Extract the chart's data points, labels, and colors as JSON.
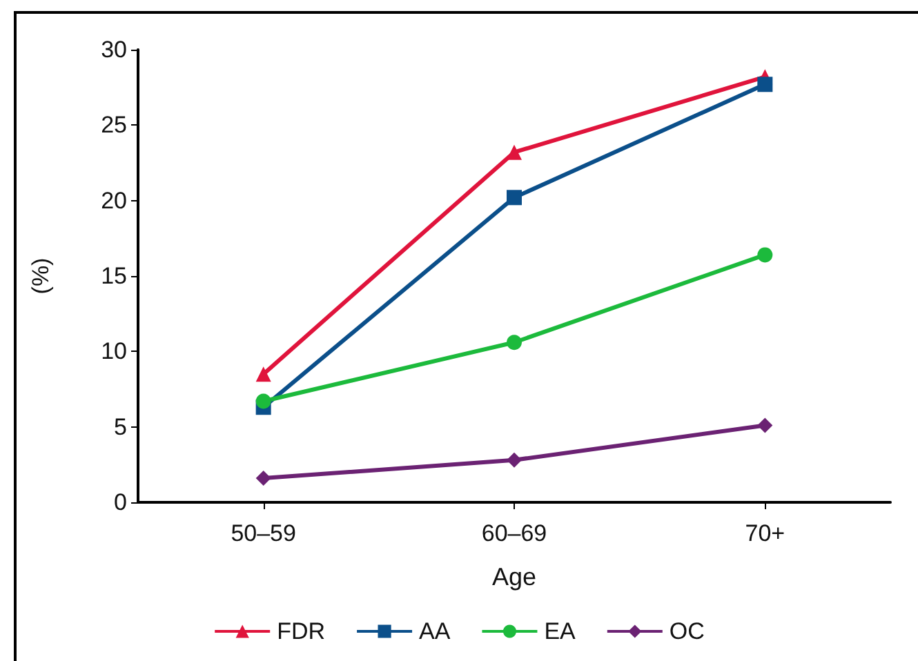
{
  "chart_data": {
    "type": "line",
    "xlabel": "Age",
    "ylabel": "(%)",
    "categories": [
      "50–59",
      "60–69",
      "70+"
    ],
    "series": [
      {
        "name": "FDR",
        "color": "#e0143c",
        "marker": "triangle",
        "values": [
          8.5,
          23.2,
          28.2
        ]
      },
      {
        "name": "AA",
        "color": "#0b4f8a",
        "marker": "square",
        "values": [
          6.3,
          20.2,
          27.7
        ]
      },
      {
        "name": "EA",
        "color": "#1cba3c",
        "marker": "circle",
        "values": [
          6.7,
          10.6,
          16.4
        ]
      },
      {
        "name": "OC",
        "color": "#6b2273",
        "marker": "diamond",
        "values": [
          1.6,
          2.8,
          5.1
        ]
      }
    ],
    "ylim": [
      0,
      30
    ],
    "yticks": [
      0,
      5,
      10,
      15,
      20,
      25,
      30
    ],
    "grid": false,
    "legend": "bottom"
  }
}
